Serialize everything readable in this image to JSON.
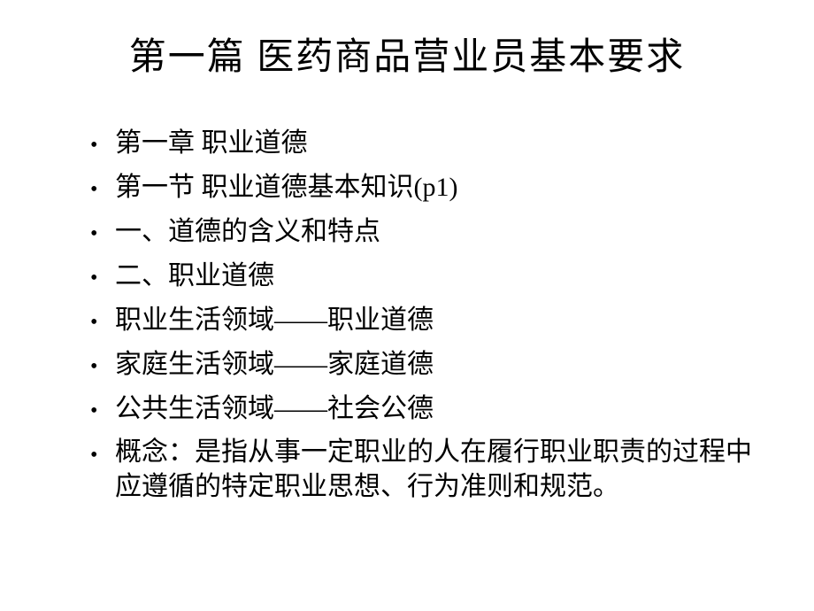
{
  "slide": {
    "title": "第一篇 医药商品营业员基本要求",
    "title_fontsize": 42,
    "body_fontsize": 30,
    "background_color": "#ffffff",
    "text_color": "#000000",
    "bullet_char": "•",
    "items": [
      "第一章 职业道德",
      "第一节 职业道德基本知识(p1)",
      "一、道德的含义和特点",
      "二、职业道德",
      "职业生活领域——职业道德",
      "家庭生活领域——家庭道德",
      "公共生活领域——社会公德",
      "概念：是指从事一定职业的人在履行职业职责的过程中应遵循的特定职业思想、行为准则和规范。"
    ]
  }
}
